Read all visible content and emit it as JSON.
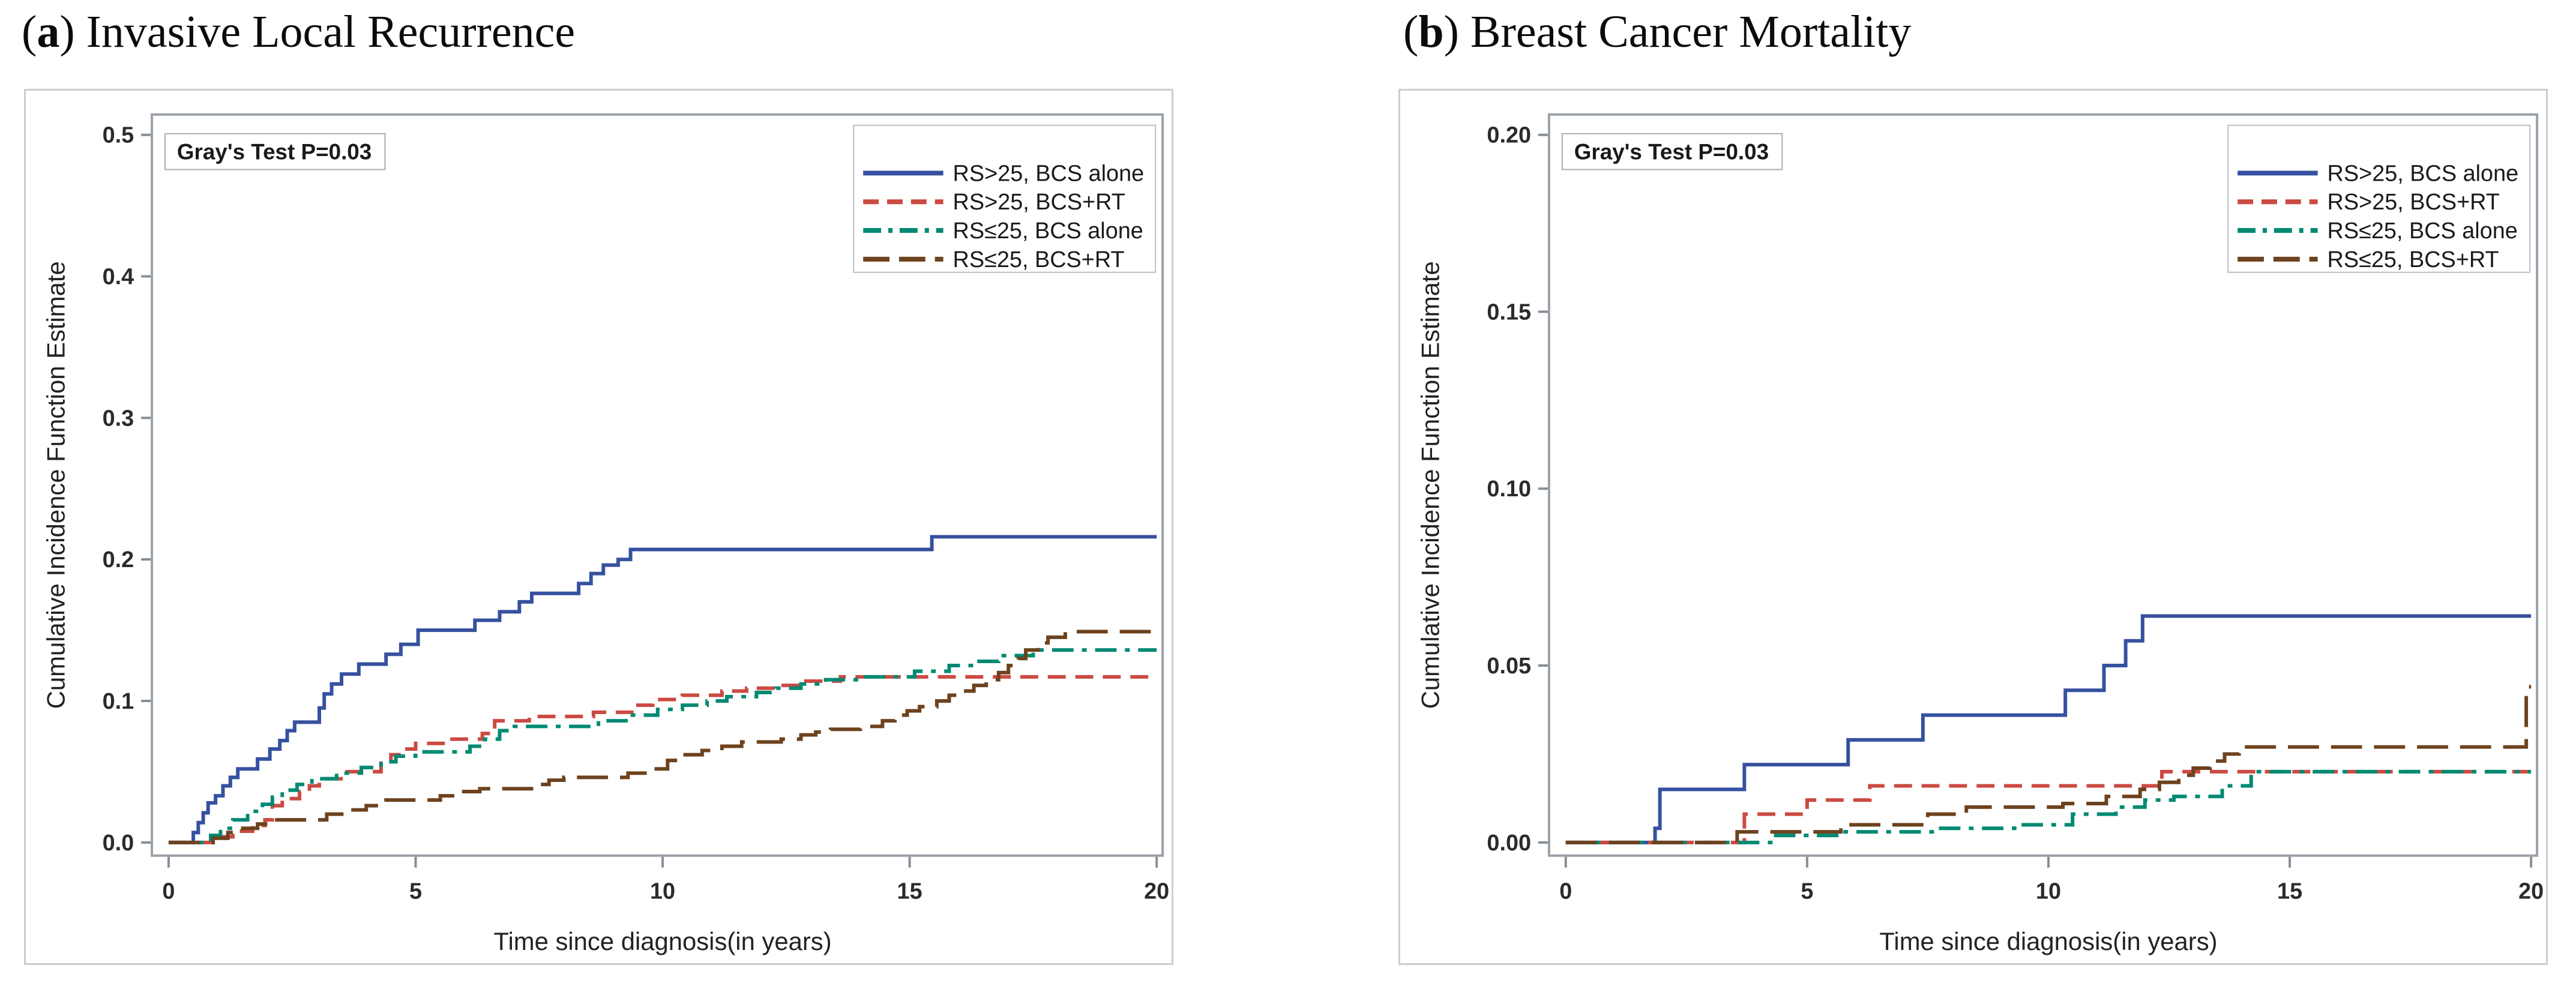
{
  "figure": {
    "paren_open": "(",
    "paren_close": ") ",
    "panels": [
      {
        "letter": "a",
        "title": "Invasive Local Recurrence"
      },
      {
        "letter": "b",
        "title": "Breast Cancer Mortality"
      }
    ]
  },
  "colors": {
    "series_blue": "#35519f",
    "series_red": "#cb4a42",
    "series_teal": "#008a73",
    "series_brown": "#6d421e",
    "frame_border": "#c9ced3",
    "plot_border": "#9aa1a8",
    "tick": "#878e95",
    "text": "#1a1a1a"
  },
  "chart_data": [
    {
      "type": "line",
      "subtype": "step-cumulative-incidence",
      "panel": "(a)",
      "title": "Invasive Local Recurrence",
      "annotation": "Gray's Test P=0.03",
      "xlabel": "Time since diagnosis(in years)",
      "ylabel": "Cumulative Incidence Function Estimate",
      "xlim": [
        0,
        20
      ],
      "ylim": [
        0,
        0.5
      ],
      "xticks": [
        "0",
        "5",
        "10",
        "15",
        "20"
      ],
      "yticks": [
        "0.0",
        "0.1",
        "0.2",
        "0.3",
        "0.4",
        "0.5"
      ],
      "grid": false,
      "legend_position": "top-right",
      "series": [
        {
          "name": "RS>25, BCS alone",
          "color": "#35519f",
          "dash": "solid",
          "steps": [
            [
              0.5,
              0.007
            ],
            [
              0.6,
              0.014
            ],
            [
              0.7,
              0.021
            ],
            [
              0.8,
              0.028
            ],
            [
              0.95,
              0.033
            ],
            [
              1.1,
              0.04
            ],
            [
              1.25,
              0.046
            ],
            [
              1.4,
              0.052
            ],
            [
              1.8,
              0.059
            ],
            [
              2.05,
              0.066
            ],
            [
              2.25,
              0.072
            ],
            [
              2.4,
              0.079
            ],
            [
              2.55,
              0.085
            ],
            [
              3.05,
              0.095
            ],
            [
              3.15,
              0.105
            ],
            [
              3.3,
              0.112
            ],
            [
              3.5,
              0.119
            ],
            [
              3.85,
              0.126
            ],
            [
              4.4,
              0.133
            ],
            [
              4.7,
              0.14
            ],
            [
              5.05,
              0.15
            ],
            [
              6.2,
              0.157
            ],
            [
              6.7,
              0.163
            ],
            [
              7.1,
              0.17
            ],
            [
              7.35,
              0.176
            ],
            [
              8.3,
              0.183
            ],
            [
              8.55,
              0.19
            ],
            [
              8.8,
              0.196
            ],
            [
              9.1,
              0.2
            ],
            [
              9.35,
              0.207
            ],
            [
              15.45,
              0.216
            ]
          ]
        },
        {
          "name": "RS>25, BCS+RT",
          "color": "#cb4a42",
          "dash": "dash",
          "steps": [
            [
              0.9,
              0.004
            ],
            [
              1.3,
              0.008
            ],
            [
              1.7,
              0.012
            ],
            [
              1.95,
              0.016
            ],
            [
              2.1,
              0.026
            ],
            [
              2.3,
              0.031
            ],
            [
              2.65,
              0.036
            ],
            [
              2.85,
              0.04
            ],
            [
              3.05,
              0.045
            ],
            [
              3.55,
              0.05
            ],
            [
              4.3,
              0.056
            ],
            [
              4.5,
              0.062
            ],
            [
              4.7,
              0.066
            ],
            [
              5.0,
              0.07
            ],
            [
              5.6,
              0.073
            ],
            [
              6.35,
              0.077
            ],
            [
              6.6,
              0.086
            ],
            [
              7.3,
              0.089
            ],
            [
              8.6,
              0.092
            ],
            [
              9.5,
              0.097
            ],
            [
              9.8,
              0.101
            ],
            [
              10.4,
              0.104
            ],
            [
              11.2,
              0.107
            ],
            [
              11.7,
              0.109
            ],
            [
              12.3,
              0.111
            ],
            [
              12.9,
              0.114
            ],
            [
              13.6,
              0.117
            ]
          ]
        },
        {
          "name": "RS≤25, BCS alone",
          "color": "#008a73",
          "dash": "dash-dot",
          "steps": [
            [
              0.85,
              0.005
            ],
            [
              1.05,
              0.01
            ],
            [
              1.3,
              0.016
            ],
            [
              1.6,
              0.022
            ],
            [
              1.9,
              0.027
            ],
            [
              2.1,
              0.032
            ],
            [
              2.3,
              0.037
            ],
            [
              2.6,
              0.041
            ],
            [
              2.9,
              0.045
            ],
            [
              3.4,
              0.049
            ],
            [
              3.9,
              0.053
            ],
            [
              4.3,
              0.057
            ],
            [
              4.6,
              0.061
            ],
            [
              5.0,
              0.064
            ],
            [
              6.1,
              0.068
            ],
            [
              6.4,
              0.073
            ],
            [
              6.7,
              0.079
            ],
            [
              7.0,
              0.082
            ],
            [
              8.7,
              0.086
            ],
            [
              9.3,
              0.09
            ],
            [
              9.9,
              0.094
            ],
            [
              10.4,
              0.097
            ],
            [
              10.9,
              0.1
            ],
            [
              11.3,
              0.103
            ],
            [
              11.9,
              0.106
            ],
            [
              12.3,
              0.109
            ],
            [
              12.8,
              0.112
            ],
            [
              13.3,
              0.115
            ],
            [
              14.0,
              0.117
            ],
            [
              15.1,
              0.121
            ],
            [
              15.8,
              0.125
            ],
            [
              16.3,
              0.128
            ],
            [
              16.8,
              0.132
            ],
            [
              17.5,
              0.136
            ]
          ]
        },
        {
          "name": "RS≤25, BCS+RT",
          "color": "#6d421e",
          "dash": "long-dash",
          "steps": [
            [
              0.9,
              0.003
            ],
            [
              1.2,
              0.007
            ],
            [
              1.5,
              0.01
            ],
            [
              1.8,
              0.013
            ],
            [
              2.0,
              0.016
            ],
            [
              3.2,
              0.02
            ],
            [
              3.6,
              0.023
            ],
            [
              4.0,
              0.026
            ],
            [
              4.4,
              0.03
            ],
            [
              5.5,
              0.033
            ],
            [
              5.9,
              0.036
            ],
            [
              6.3,
              0.038
            ],
            [
              7.4,
              0.041
            ],
            [
              7.7,
              0.044
            ],
            [
              8.0,
              0.046
            ],
            [
              9.3,
              0.049
            ],
            [
              9.7,
              0.052
            ],
            [
              10.1,
              0.058
            ],
            [
              10.35,
              0.062
            ],
            [
              10.8,
              0.065
            ],
            [
              11.2,
              0.068
            ],
            [
              11.6,
              0.071
            ],
            [
              12.4,
              0.073
            ],
            [
              12.8,
              0.076
            ],
            [
              13.1,
              0.078
            ],
            [
              13.4,
              0.08
            ],
            [
              14.0,
              0.082
            ],
            [
              14.45,
              0.086
            ],
            [
              14.7,
              0.09
            ],
            [
              14.95,
              0.093
            ],
            [
              15.2,
              0.096
            ],
            [
              15.55,
              0.1
            ],
            [
              15.8,
              0.104
            ],
            [
              16.05,
              0.107
            ],
            [
              16.3,
              0.111
            ],
            [
              16.55,
              0.115
            ],
            [
              16.8,
              0.12
            ],
            [
              17.0,
              0.125
            ],
            [
              17.2,
              0.13
            ],
            [
              17.35,
              0.136
            ],
            [
              17.6,
              0.141
            ],
            [
              17.8,
              0.145
            ],
            [
              18.15,
              0.149
            ]
          ]
        }
      ]
    },
    {
      "type": "line",
      "subtype": "step-cumulative-incidence",
      "panel": "(b)",
      "title": "Breast Cancer Mortality",
      "annotation": "Gray's Test P=0.03",
      "xlabel": "Time since diagnosis(in years)",
      "ylabel": "Cumulative Incidence Function Estimate",
      "xlim": [
        0,
        20
      ],
      "ylim": [
        0,
        0.2
      ],
      "xticks": [
        "0",
        "5",
        "10",
        "15",
        "20"
      ],
      "yticks": [
        "0.00",
        "0.05",
        "0.10",
        "0.15",
        "0.20"
      ],
      "grid": false,
      "legend_position": "top-right",
      "series": [
        {
          "name": "RS>25, BCS alone",
          "color": "#35519f",
          "dash": "solid",
          "steps": [
            [
              1.85,
              0.004
            ],
            [
              1.95,
              0.015
            ],
            [
              3.7,
              0.022
            ],
            [
              5.85,
              0.029
            ],
            [
              7.4,
              0.036
            ],
            [
              10.35,
              0.043
            ],
            [
              11.15,
              0.05
            ],
            [
              11.6,
              0.057
            ],
            [
              11.95,
              0.064
            ]
          ]
        },
        {
          "name": "RS>25, BCS+RT",
          "color": "#cb4a42",
          "dash": "dash",
          "steps": [
            [
              3.7,
              0.008
            ],
            [
              5.0,
              0.012
            ],
            [
              6.3,
              0.016
            ],
            [
              12.35,
              0.02
            ]
          ]
        },
        {
          "name": "RS≤25, BCS alone",
          "color": "#008a73",
          "dash": "dash-dot",
          "steps": [
            [
              4.3,
              0.002
            ],
            [
              5.7,
              0.003
            ],
            [
              7.7,
              0.004
            ],
            [
              9.3,
              0.005
            ],
            [
              10.5,
              0.008
            ],
            [
              11.4,
              0.01
            ],
            [
              12.0,
              0.012
            ],
            [
              12.6,
              0.013
            ],
            [
              13.6,
              0.016
            ],
            [
              14.2,
              0.02
            ]
          ]
        },
        {
          "name": "RS≤25, BCS+RT",
          "color": "#6d421e",
          "dash": "long-dash",
          "steps": [
            [
              3.55,
              0.003
            ],
            [
              5.7,
              0.005
            ],
            [
              7.5,
              0.008
            ],
            [
              8.3,
              0.01
            ],
            [
              10.3,
              0.011
            ],
            [
              11.2,
              0.013
            ],
            [
              11.9,
              0.015
            ],
            [
              12.3,
              0.017
            ],
            [
              12.7,
              0.019
            ],
            [
              13.0,
              0.021
            ],
            [
              13.35,
              0.023
            ],
            [
              13.65,
              0.025
            ],
            [
              13.95,
              0.027
            ],
            [
              19.9,
              0.044
            ]
          ]
        }
      ]
    }
  ]
}
